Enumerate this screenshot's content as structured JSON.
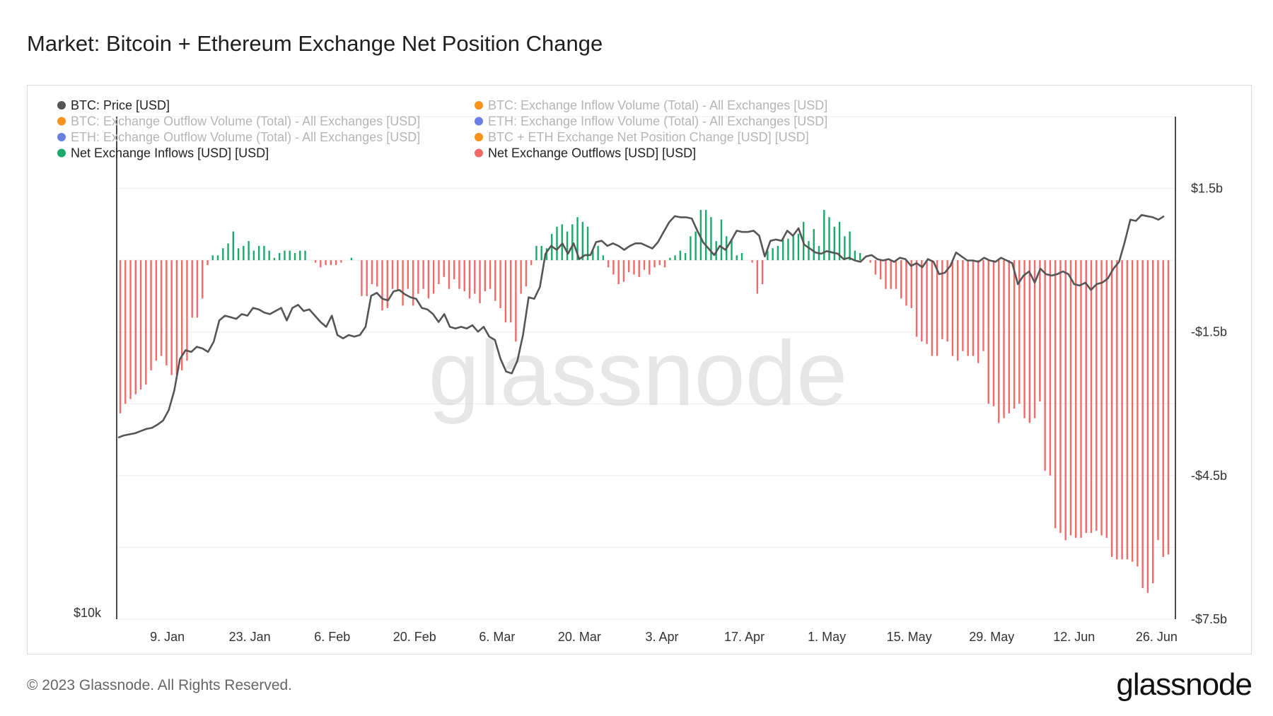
{
  "title": "Market: Bitcoin + Ethereum Exchange Net Position Change",
  "footer": "© 2023 Glassnode. All Rights Reserved.",
  "brand": "glassnode",
  "watermark": "glassnode",
  "colors": {
    "price": "#555555",
    "inflow": "#1aaa6a",
    "outflow": "#f06a6a",
    "grid": "#ececec",
    "legend_active": "#222222",
    "legend_inactive": "#b5b5b5",
    "dot_orange": "#f7931a",
    "dot_blue": "#6b7fe3"
  },
  "legend": [
    {
      "label": "BTC: Price [USD]",
      "color": "#555555",
      "active": true
    },
    {
      "label": "BTC: Exchange Inflow Volume (Total) - All Exchanges [USD]",
      "color": "#f7931a",
      "active": false
    },
    {
      "label": "BTC: Exchange Outflow Volume (Total) - All Exchanges [USD]",
      "color": "#f7931a",
      "active": false
    },
    {
      "label": "ETH: Exchange Inflow Volume (Total) - All Exchanges [USD]",
      "color": "#6b7fe3",
      "active": false
    },
    {
      "label": "ETH: Exchange Outflow Volume (Total) - All Exchanges [USD]",
      "color": "#6b7fe3",
      "active": false
    },
    {
      "label": "BTC + ETH Exchange Net Position Change [USD] [USD]",
      "color": "#f7931a",
      "active": false
    },
    {
      "label": "Net Exchange Inflows [USD] [USD]",
      "color": "#1aaa6a",
      "active": true
    },
    {
      "label": "Net Exchange Outflows [USD] [USD]",
      "color": "#f06a6a",
      "active": true
    }
  ],
  "chart_data": {
    "type": "bar",
    "x_axis": {
      "type": "date",
      "start": "2023-01-01",
      "end": "2023-06-28",
      "ticks": [
        "9. Jan",
        "23. Jan",
        "6. Feb",
        "20. Feb",
        "6. Mar",
        "20. Mar",
        "3. Apr",
        "17. Apr",
        "1. May",
        "15. May",
        "29. May",
        "12. Jun",
        "26. Jun"
      ],
      "tick_dates": [
        "2023-01-09",
        "2023-01-23",
        "2023-02-06",
        "2023-02-20",
        "2023-03-06",
        "2023-03-20",
        "2023-04-03",
        "2023-04-17",
        "2023-05-01",
        "2023-05-15",
        "2023-05-29",
        "2023-06-12",
        "2023-06-26"
      ]
    },
    "y_left": {
      "label": "",
      "tick_labels": [
        "$10k"
      ],
      "scale": "log",
      "range": [
        10000,
        40000
      ]
    },
    "y_right": {
      "label": "",
      "unit": "USD billions",
      "tick_labels": [
        "$1.5b",
        "-$1.5b",
        "-$4.5b",
        "-$7.5b"
      ],
      "tick_values": [
        1.5,
        -1.5,
        -4.5,
        -7.5
      ],
      "range": [
        -7.5,
        3.0
      ]
    },
    "net_position_change_billion_usd": [
      -3.2,
      -3.0,
      -2.9,
      -2.8,
      -2.7,
      -2.6,
      -2.3,
      -2.1,
      -2.0,
      -2.2,
      -2.4,
      -2.4,
      -2.3,
      -2.1,
      -1.2,
      -1.2,
      -0.8,
      -0.1,
      0.1,
      0.1,
      0.25,
      0.35,
      0.6,
      0.25,
      0.3,
      0.4,
      0.2,
      0.3,
      0.3,
      0.2,
      0.05,
      0.15,
      0.2,
      0.2,
      0.15,
      0.2,
      0.2,
      0.0,
      -0.05,
      -0.15,
      -0.1,
      -0.1,
      -0.1,
      -0.05,
      0.0,
      0.05,
      0.0,
      -0.75,
      -0.75,
      -0.5,
      -0.55,
      -1.05,
      -1.0,
      -0.6,
      -0.65,
      -0.95,
      -0.6,
      -0.95,
      -0.7,
      -0.6,
      -0.8,
      -0.7,
      -0.5,
      -0.35,
      -0.6,
      -0.4,
      -0.6,
      -0.65,
      -0.8,
      -0.7,
      -0.9,
      -0.65,
      -0.6,
      -0.85,
      -1.0,
      -1.3,
      -1.3,
      -1.7,
      -0.7,
      -0.55,
      -0.1,
      0.3,
      0.3,
      0.25,
      0.55,
      0.7,
      0.75,
      0.6,
      0.75,
      0.9,
      0.8,
      0.7,
      0.2,
      0.3,
      0.1,
      -0.15,
      -0.3,
      -0.5,
      -0.45,
      -0.25,
      -0.3,
      -0.35,
      -0.2,
      -0.3,
      -0.15,
      -0.1,
      -0.15,
      0.05,
      0.1,
      0.2,
      0.15,
      0.5,
      0.6,
      1.05,
      1.05,
      0.9,
      0.4,
      0.85,
      0.5,
      0.45,
      0.1,
      0.15,
      0.0,
      -0.05,
      -0.7,
      -0.5,
      0.2,
      0.25,
      0.3,
      0.45,
      0.45,
      0.5,
      0.55,
      0.8,
      0.4,
      0.65,
      0.3,
      1.05,
      0.9,
      0.7,
      0.8,
      0.5,
      0.6,
      0.2,
      0.15,
      0.0,
      -0.05,
      -0.3,
      -0.4,
      -0.6,
      -0.6,
      -0.6,
      -0.8,
      -0.95,
      -1.0,
      -1.6,
      -1.7,
      -1.75,
      -2.0,
      -2.0,
      -1.65,
      -1.7,
      -2.0,
      -2.1,
      -1.9,
      -2.0,
      -2.0,
      -2.15,
      -1.9,
      -3.0,
      -3.05,
      -3.4,
      -3.3,
      -3.2,
      -3.1,
      -3.0,
      -3.3,
      -3.4,
      -3.3,
      -2.95,
      -4.4,
      -4.5,
      -5.6,
      -5.7,
      -5.85,
      -5.75,
      -5.8,
      -5.8,
      -5.7,
      -5.7,
      -5.65,
      -5.75,
      -5.8,
      -6.2,
      -6.25,
      -6.25,
      -6.25,
      -6.3,
      -6.4,
      -6.85,
      -6.95,
      -6.75,
      -5.85,
      -6.2,
      -6.15
    ],
    "btc_price_usd": [
      16500,
      16600,
      16650,
      16700,
      16800,
      16900,
      16950,
      17100,
      17300,
      17800,
      18800,
      20500,
      21000,
      20900,
      21200,
      21100,
      20900,
      21500,
      22800,
      23100,
      23000,
      22900,
      23200,
      23100,
      23600,
      23500,
      23300,
      23200,
      23400,
      23600,
      22800,
      23600,
      23800,
      23400,
      23500,
      23100,
      22700,
      22400,
      23100,
      21900,
      21700,
      21900,
      21800,
      21900,
      22400,
      24400,
      24600,
      24200,
      24100,
      24700,
      24800,
      24500,
      24300,
      24200,
      23600,
      23500,
      23200,
      22700,
      23200,
      22400,
      22300,
      22400,
      22300,
      22500,
      22100,
      22400,
      21800,
      21600,
      20500,
      19800,
      19700,
      20400,
      21900,
      24300,
      24200,
      25000,
      27400,
      28000,
      27700,
      28200,
      27400,
      28200,
      27000,
      27300,
      27300,
      28300,
      28400,
      28000,
      28200,
      28000,
      27700,
      28000,
      28200,
      28200,
      28000,
      27800,
      28300,
      29100,
      29900,
      30400,
      30300,
      30300,
      30200,
      29200,
      28300,
      27800,
      27300,
      28000,
      27700,
      28400,
      29200,
      29100,
      29100,
      29200,
      28800,
      27200,
      28400,
      28500,
      28400,
      29200,
      28800,
      29400,
      28100,
      27800,
      27500,
      27400,
      27600,
      27500,
      27400,
      27000,
      27100,
      26900,
      26800,
      27200,
      27300,
      27000,
      26900,
      27000,
      26800,
      27100,
      27000,
      26500,
      26700,
      26400,
      27000,
      26800,
      25900,
      26000,
      26500,
      27500,
      27200,
      26900,
      26900,
      26800,
      27100,
      26900,
      26800,
      27100,
      26900,
      26700,
      25200,
      25800,
      26100,
      25300,
      26300,
      25900,
      25800,
      25900,
      26100,
      25900,
      25200,
      25100,
      25300,
      24800,
      25200,
      25300,
      25600,
      26300,
      26800,
      28300,
      30100,
      30000,
      30500,
      30400,
      30300,
      30100,
      30400
    ],
    "price_series_label": "BTC: Price [USD]",
    "inflow_series_label": "Net Exchange Inflows [USD] [USD]",
    "outflow_series_label": "Net Exchange Outflows [USD] [USD]"
  }
}
